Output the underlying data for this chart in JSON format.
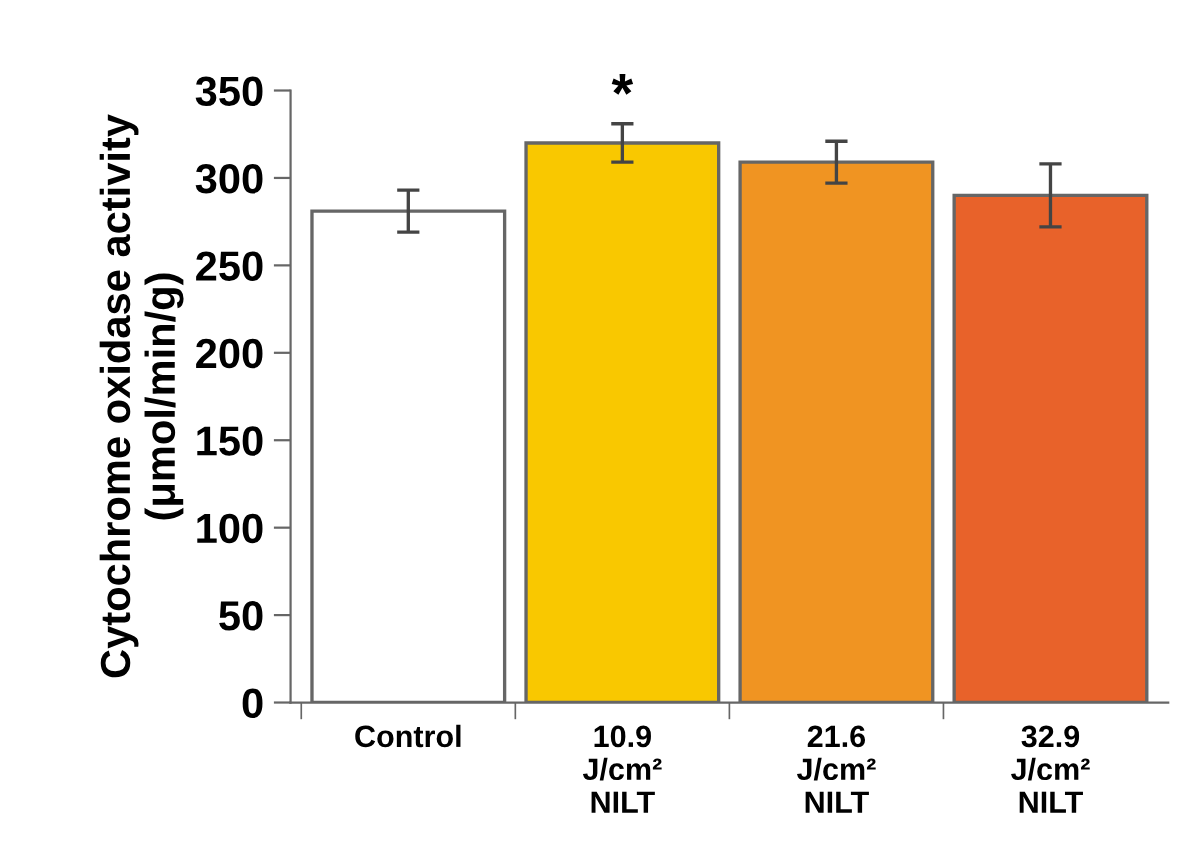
{
  "chart_data": {
    "type": "bar",
    "ylabel": "Cytochrome oxidase activity\n(μmol/min/g)",
    "categories": [
      "Control",
      "10.9\nJ/cm²\nNILT",
      "21.6\nJ/cm²\nNILT",
      "32.9\nJ/cm²\nNILT"
    ],
    "values": [
      281,
      320,
      309,
      290
    ],
    "errors": [
      12,
      11,
      12,
      18
    ],
    "colors": [
      "#ffffff",
      "#f9c800",
      "#f09422",
      "#e8622a"
    ],
    "ylim": [
      0,
      350
    ],
    "yticks": [
      0,
      50,
      100,
      150,
      200,
      250,
      300,
      350
    ],
    "annotations": [
      {
        "text": "*",
        "x": "10.9\nJ/cm²\nNILT",
        "y": 331
      }
    ],
    "grid": false,
    "legend": false
  }
}
